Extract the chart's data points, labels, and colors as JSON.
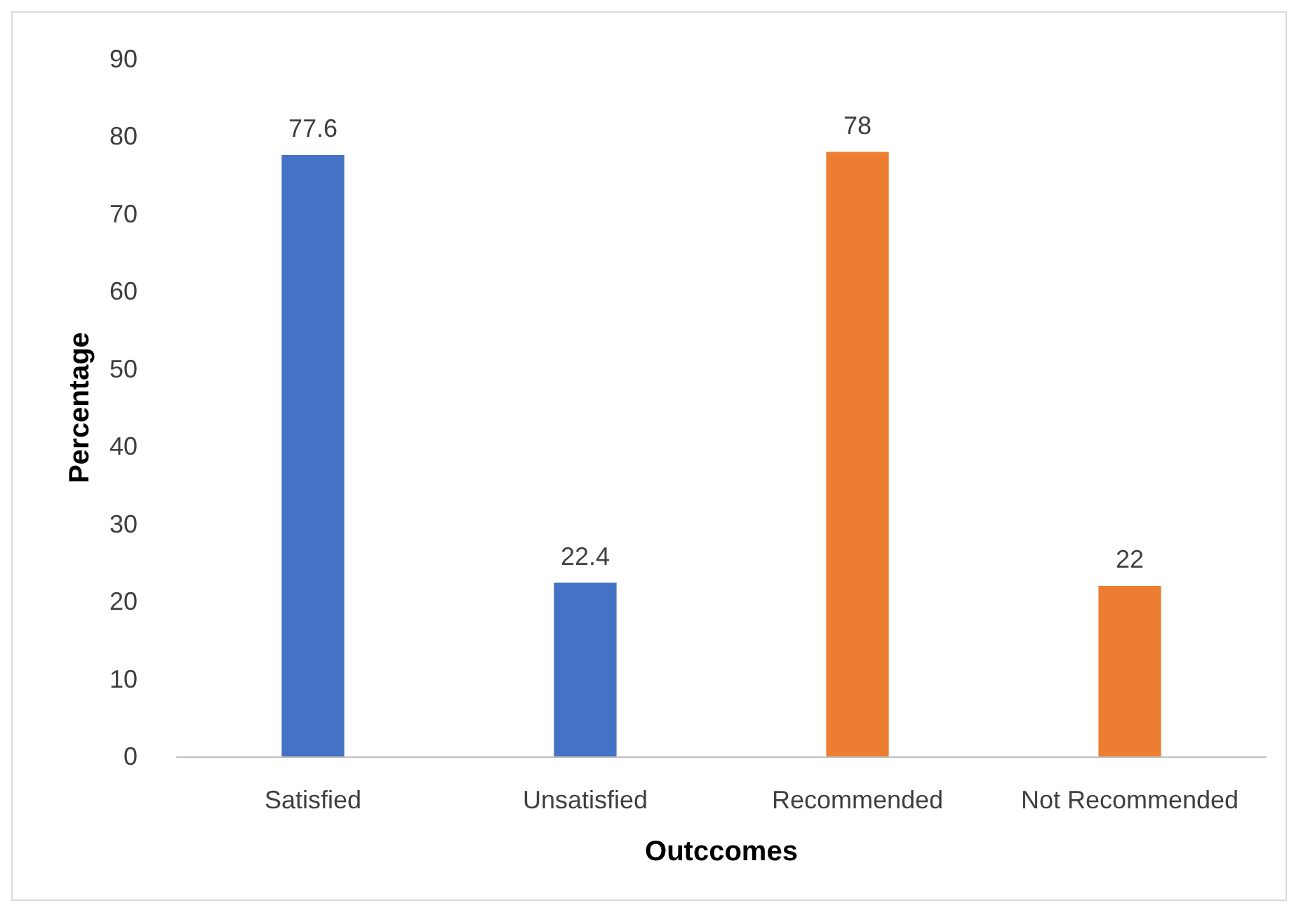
{
  "chart_data": {
    "type": "bar",
    "xlabel": "Outccomes",
    "ylabel": "Percentage",
    "categories": [
      "Satisfied",
      "Unsatisfied",
      "Recommended",
      "Not Recommended"
    ],
    "values": [
      77.6,
      22.4,
      78,
      22
    ],
    "colors": [
      "#4472c4",
      "#4472c4",
      "#ed7d31",
      "#ed7d31"
    ],
    "ylim": [
      0,
      90
    ],
    "yticks": [
      0,
      10,
      20,
      30,
      40,
      50,
      60,
      70,
      80,
      90
    ],
    "data_labels": true,
    "grid": false
  }
}
